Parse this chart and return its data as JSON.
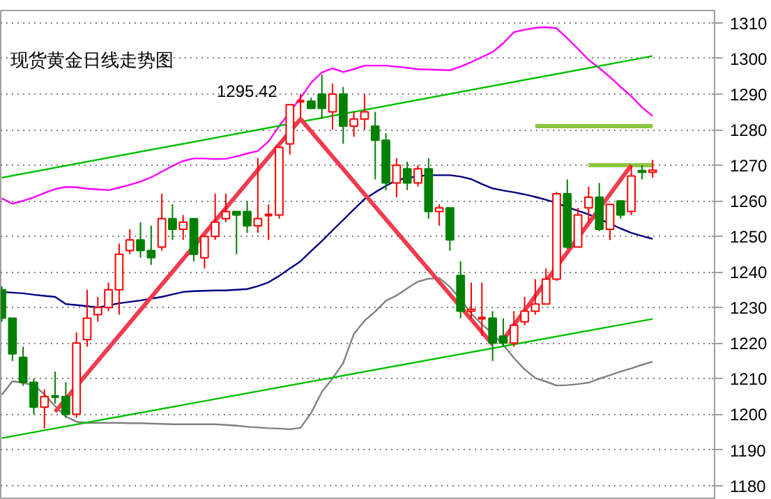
{
  "chart_data": {
    "type": "candlestick",
    "title": "现货黄金日线走势图",
    "categories": [
      null,
      null,
      null,
      null,
      null,
      null,
      null,
      null,
      null,
      null,
      null,
      null,
      null,
      null,
      null,
      null,
      null,
      null,
      null,
      null,
      null,
      null,
      null,
      null,
      null,
      null,
      null,
      null,
      null,
      null,
      null,
      null,
      null,
      null,
      null,
      null,
      null,
      null,
      null,
      null,
      null,
      null,
      null,
      null,
      null,
      null,
      null,
      null,
      null,
      null,
      null,
      null,
      null,
      null,
      null,
      null,
      null,
      null,
      null,
      null,
      null,
      null
    ],
    "ohlc": [
      [
        1235,
        1236,
        1226,
        1227
      ],
      [
        1227,
        1227,
        1215,
        1217
      ],
      [
        1216,
        1219,
        1208,
        1209
      ],
      [
        1209,
        1210,
        1200,
        1202
      ],
      [
        1202,
        1207,
        1196,
        1205
      ],
      [
        1205,
        1212,
        1203,
        1205
      ],
      [
        1205,
        1209,
        1199,
        1200
      ],
      [
        1200,
        1223,
        1199,
        1220
      ],
      [
        1221,
        1235,
        1219,
        1227
      ],
      [
        1228,
        1233,
        1226,
        1230
      ],
      [
        1230,
        1237,
        1229,
        1235
      ],
      [
        1235,
        1248,
        1228,
        1245
      ],
      [
        1246,
        1252,
        1245,
        1249
      ],
      [
        1249,
        1254,
        1244,
        1246
      ],
      [
        1246,
        1253,
        1242,
        1244
      ],
      [
        1247,
        1262,
        1246,
        1255
      ],
      [
        1255,
        1259,
        1249,
        1252
      ],
      [
        1252,
        1256,
        1249,
        1254
      ],
      [
        1255,
        1255,
        1243,
        1245
      ],
      [
        1244,
        1250,
        1241,
        1250
      ],
      [
        1250,
        1262,
        1249,
        1254
      ],
      [
        1255,
        1262,
        1254,
        1257
      ],
      [
        1257,
        1257,
        1245,
        1256
      ],
      [
        1257,
        1260,
        1251,
        1253
      ],
      [
        1253,
        1272,
        1251,
        1255
      ],
      [
        1256,
        1259,
        1249,
        1256
      ],
      [
        1256,
        1275,
        1255,
        1275
      ],
      [
        1276,
        1287,
        1273,
        1287
      ],
      [
        1288,
        1290,
        1283,
        1288
      ],
      [
        1288,
        1289,
        1286,
        1286
      ],
      [
        1290,
        1295.42,
        1283,
        1286
      ],
      [
        1285,
        1293,
        1280,
        1290
      ],
      [
        1290,
        1292,
        1276,
        1281
      ],
      [
        1281,
        1285,
        1278,
        1283
      ],
      [
        1283,
        1290,
        1280,
        1285
      ],
      [
        1281,
        1285,
        1266,
        1277
      ],
      [
        1277,
        1279,
        1263,
        1265
      ],
      [
        1265,
        1272,
        1261,
        1270
      ],
      [
        1269,
        1271,
        1263,
        1265
      ],
      [
        1265,
        1270,
        1264,
        1269
      ],
      [
        1269,
        1272,
        1255,
        1257
      ],
      [
        1257,
        1259,
        1253,
        1258
      ],
      [
        1258,
        1258,
        1246,
        1249
      ],
      [
        1239,
        1243,
        1227,
        1229
      ],
      [
        1229,
        1237,
        1227,
        1229.5
      ],
      [
        1227,
        1237,
        1222,
        1227
      ],
      [
        1227,
        1229,
        1215,
        1220
      ],
      [
        1222,
        1227,
        1219,
        1220
      ],
      [
        1220,
        1229,
        1219,
        1225
      ],
      [
        1226,
        1233,
        1225,
        1229
      ],
      [
        1229,
        1238,
        1228,
        1231
      ],
      [
        1231,
        1241,
        1231,
        1238
      ],
      [
        1238,
        1262.5,
        1237.5,
        1262
      ],
      [
        1262,
        1266,
        1246.5,
        1247
      ],
      [
        1247,
        1258,
        1247,
        1256
      ],
      [
        1258,
        1264,
        1254,
        1261
      ],
      [
        1261,
        1265,
        1251.5,
        1252
      ],
      [
        1252,
        1259,
        1249,
        1259
      ],
      [
        1260,
        1260,
        1255,
        1256
      ],
      [
        1257,
        1270,
        1256,
        1267
      ],
      [
        1268.5,
        1270,
        1266,
        1268
      ],
      [
        1268,
        1271.5,
        1266.5,
        1268.6
      ]
    ],
    "colors": [
      "#008000",
      "#008000",
      "#008000",
      "#008000",
      "#ff0000",
      "#008000",
      "#008000",
      "#ff0000",
      "#ff0000",
      "#ff0000",
      "#ff0000",
      "#ff0000",
      "#ff0000",
      "#008000",
      "#008000",
      "#ff0000",
      "#008000",
      "#ff0000",
      "#008000",
      "#ff0000",
      "#ff0000",
      "#ff0000",
      "#008000",
      "#008000",
      "#ff0000",
      "#ff0000",
      "#ff0000",
      "#ff0000",
      "#ff0000",
      "#008000",
      "#008000",
      "#ff0000",
      "#008000",
      "#ff0000",
      "#ff0000",
      "#008000",
      "#008000",
      "#ff0000",
      "#008000",
      "#ff0000",
      "#008000",
      "#ff0000",
      "#008000",
      "#008000",
      "#ff0000",
      "#ff0000",
      "#008000",
      "#008000",
      "#ff0000",
      "#ff0000",
      "#ff0000",
      "#ff0000",
      "#ff0000",
      "#008000",
      "#ff0000",
      "#ff0000",
      "#008000",
      "#ff0000",
      "#008000",
      "#ff0000",
      "#008000",
      "#ff0000"
    ],
    "series": [
      {
        "type": "line",
        "color": "#ff00ff",
        "values": [
          1260.7,
          1259.2,
          1260,
          1261,
          1262.2,
          1263.3,
          1263.9,
          1263.8,
          1263.4,
          1263.2,
          1263,
          1263.7,
          1264.5,
          1265.4,
          1266.6,
          1268.2,
          1269.8,
          1271.2,
          1271.9,
          1271.9,
          1271.7,
          1271.8,
          1272.5,
          1273.3,
          1274,
          1276.7,
          1281,
          1285,
          1288.9,
          1293.2,
          1296.1,
          1297.2,
          1296.2,
          1297,
          1298,
          1298,
          1298,
          1297.7,
          1297.4,
          1297,
          1296.9,
          1296.8,
          1296.7,
          1297.7,
          1299,
          1300.4,
          1301.8,
          1304.3,
          1307.4,
          1308.1,
          1308.6,
          1308.8,
          1308.5,
          1305.7,
          1302.7,
          1299.6,
          1297.3,
          1294.8,
          1292,
          1289.4,
          1286.3,
          1283.8
        ]
      },
      {
        "type": "line",
        "color": "#000080",
        "values": [
          1234.4,
          1234.2,
          1234,
          1233.6,
          1233.3,
          1233,
          1231,
          1230.7,
          1230.4,
          1230,
          1230.6,
          1231.2,
          1231.6,
          1232,
          1232.5,
          1233,
          1233.7,
          1234.4,
          1234.6,
          1234.7,
          1234.8,
          1234.8,
          1235,
          1235.2,
          1236,
          1237.1,
          1238.9,
          1241,
          1243,
          1245.9,
          1248.7,
          1251.7,
          1254.6,
          1257.6,
          1260.5,
          1262.4,
          1264.2,
          1265.8,
          1266.4,
          1266.9,
          1267.2,
          1267.2,
          1267.2,
          1266.8,
          1266.1,
          1264.7,
          1263.5,
          1262.9,
          1262.4,
          1261.8,
          1261.1,
          1260.3,
          1259.4,
          1258.2,
          1257.2,
          1256.2,
          1254.9,
          1253.6,
          1252.2,
          1251,
          1250.1,
          1249.3
        ]
      },
      {
        "type": "line",
        "color": "#808080",
        "values": [
          1205.5,
          1209.3,
          1208.8,
          1208.2,
          1205.6,
          1202.3,
          1199.4,
          1197.9,
          1197.6,
          1197.6,
          1197.6,
          1197.6,
          1197.5,
          1197.5,
          1197.4,
          1197.3,
          1197.2,
          1197.2,
          1197.2,
          1197.2,
          1197.2,
          1197,
          1196.8,
          1196.5,
          1196.3,
          1196.1,
          1196,
          1195.8,
          1196.2,
          1200.4,
          1206.3,
          1210.1,
          1214.4,
          1222.6,
          1226.3,
          1228.9,
          1231.9,
          1233.4,
          1235.4,
          1237.3,
          1238.1,
          1238.3,
          1235.8,
          1232.3,
          1228.3,
          1225.3,
          1222.7,
          1219.5,
          1215.8,
          1212.6,
          1210.2,
          1209.2,
          1208.1,
          1208.2,
          1208.5,
          1208.9,
          1210,
          1211,
          1212,
          1212.9,
          1213.9,
          1214.8
        ]
      },
      {
        "type": "line",
        "color": "#00c000",
        "values": [
          1266.5,
          null,
          null,
          null,
          null,
          null,
          null,
          null,
          null,
          null,
          null,
          null,
          null,
          null,
          null,
          null,
          null,
          null,
          null,
          null,
          null,
          null,
          null,
          null,
          null,
          null,
          null,
          null,
          null,
          null,
          null,
          null,
          null,
          null,
          null,
          null,
          null,
          null,
          null,
          null,
          null,
          null,
          null,
          null,
          null,
          null,
          null,
          null,
          null,
          null,
          null,
          null,
          null,
          null,
          null,
          null,
          null,
          null,
          null,
          null,
          null,
          1300.7
        ]
      },
      {
        "type": "line",
        "color": "#00c000",
        "values": [
          1193.3,
          null,
          null,
          null,
          null,
          null,
          null,
          null,
          null,
          null,
          null,
          null,
          null,
          null,
          null,
          null,
          null,
          null,
          null,
          null,
          null,
          null,
          null,
          null,
          null,
          null,
          null,
          null,
          null,
          null,
          null,
          null,
          null,
          null,
          null,
          null,
          null,
          null,
          null,
          null,
          null,
          null,
          null,
          null,
          null,
          null,
          null,
          null,
          null,
          null,
          null,
          null,
          null,
          null,
          null,
          null,
          null,
          null,
          null,
          null,
          null,
          1226.8
        ]
      },
      {
        "type": "line",
        "color": "#8cc83c",
        "values": [
          null,
          null,
          null,
          null,
          null,
          null,
          null,
          null,
          null,
          null,
          null,
          null,
          null,
          null,
          null,
          null,
          null,
          null,
          null,
          null,
          null,
          null,
          null,
          null,
          null,
          null,
          null,
          null,
          null,
          null,
          null,
          null,
          null,
          null,
          null,
          null,
          null,
          null,
          null,
          null,
          null,
          null,
          null,
          null,
          null,
          null,
          null,
          null,
          null,
          null,
          1281,
          null,
          null,
          null,
          null,
          null,
          null,
          null,
          null,
          null,
          null,
          1281
        ]
      },
      {
        "type": "line",
        "color": "#8cc83c",
        "values": [
          null,
          null,
          null,
          null,
          null,
          null,
          null,
          null,
          null,
          null,
          null,
          null,
          null,
          null,
          null,
          null,
          null,
          null,
          null,
          null,
          null,
          null,
          null,
          null,
          null,
          null,
          null,
          null,
          null,
          null,
          null,
          null,
          null,
          null,
          null,
          null,
          null,
          null,
          null,
          null,
          null,
          null,
          null,
          null,
          null,
          null,
          null,
          null,
          null,
          null,
          null,
          null,
          null,
          null,
          null,
          1270,
          null,
          null,
          null,
          null,
          null,
          1270
        ]
      },
      {
        "type": "line",
        "color": "#f03c50",
        "values": [
          null,
          null,
          null,
          null,
          null,
          1200.7,
          null,
          null,
          null,
          null,
          null,
          null,
          null,
          null,
          null,
          null,
          null,
          null,
          null,
          null,
          null,
          null,
          null,
          null,
          null,
          null,
          null,
          null,
          1283,
          null,
          null,
          null,
          null,
          null,
          null,
          null,
          null,
          null,
          null,
          null,
          null,
          null,
          null,
          null,
          null,
          null,
          null,
          null,
          null,
          null,
          null,
          null,
          null,
          null,
          null,
          null,
          null,
          null,
          null,
          null,
          null,
          null
        ]
      },
      {
        "type": "line",
        "color": "#f03c50",
        "values": [
          null,
          null,
          null,
          null,
          null,
          null,
          null,
          null,
          null,
          null,
          null,
          null,
          null,
          null,
          null,
          null,
          null,
          null,
          null,
          null,
          null,
          null,
          null,
          null,
          null,
          null,
          null,
          null,
          1283,
          null,
          null,
          null,
          null,
          null,
          null,
          null,
          null,
          null,
          null,
          null,
          null,
          null,
          null,
          null,
          null,
          null,
          1219.6,
          null,
          null,
          null,
          null,
          null,
          null,
          null,
          null,
          null,
          null,
          null,
          null,
          null,
          null,
          null
        ]
      },
      {
        "type": "line",
        "color": "#f03c50",
        "values": [
          null,
          null,
          null,
          null,
          null,
          null,
          null,
          null,
          null,
          null,
          null,
          null,
          null,
          null,
          null,
          null,
          null,
          null,
          null,
          null,
          null,
          null,
          null,
          null,
          null,
          null,
          null,
          null,
          null,
          null,
          null,
          null,
          null,
          null,
          null,
          null,
          null,
          null,
          null,
          null,
          null,
          null,
          null,
          null,
          null,
          null,
          null,
          1221,
          null,
          null,
          null,
          null,
          null,
          null,
          null,
          null,
          null,
          null,
          null,
          1270,
          null,
          null
        ]
      }
    ],
    "annotations": [
      "1295.42"
    ],
    "ylim": [
      1176,
      1313.5
    ],
    "yticks": [
      1180,
      1190,
      1200,
      1210,
      1220,
      1230,
      1240,
      1250,
      1260,
      1270,
      1280,
      1290,
      1300,
      1310
    ],
    "grid": "y",
    "tick_labels": "y"
  }
}
